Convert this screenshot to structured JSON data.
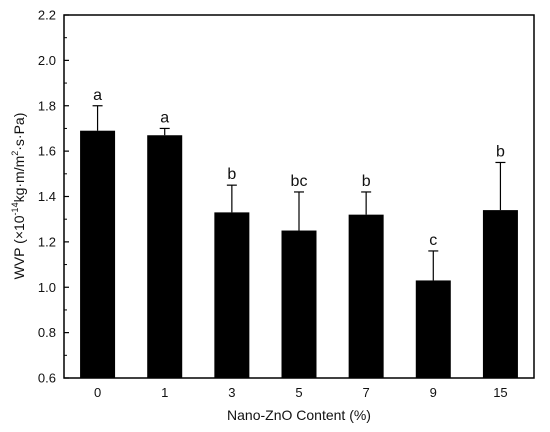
{
  "chart_data": {
    "type": "bar",
    "categories": [
      "0",
      "1",
      "3",
      "5",
      "7",
      "9",
      "15"
    ],
    "values": [
      1.69,
      1.67,
      1.33,
      1.25,
      1.32,
      1.03,
      1.34
    ],
    "errors": [
      0.11,
      0.03,
      0.12,
      0.17,
      0.1,
      0.13,
      0.21
    ],
    "significance": [
      "a",
      "a",
      "b",
      "bc",
      "b",
      "c",
      "b"
    ],
    "xlabel": "Nano-ZnO Content (%)",
    "ylabel_parts": {
      "prefix": "WVP (×10",
      "exp1": "-14",
      "mid": "kg·m/m",
      "exp2": "2",
      "suffix": "·s·Pa)"
    },
    "ylim": [
      0.6,
      2.2
    ],
    "yticks": [
      "0.6",
      "0.8",
      "1.0",
      "1.2",
      "1.4",
      "1.6",
      "1.8",
      "2.0",
      "2.2"
    ],
    "bar_color": "#000000",
    "grid": false
  }
}
